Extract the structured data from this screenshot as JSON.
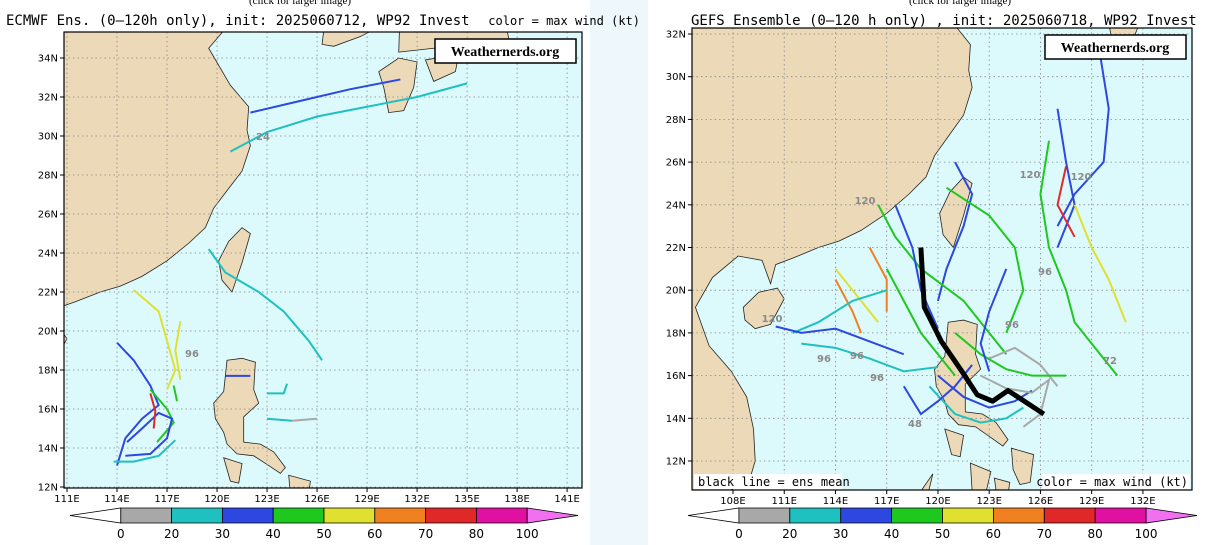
{
  "panels": [
    {
      "caption": "(click for larger image)",
      "title": "ECMWF Ens. (0–120h only), init: 2025060712, WP92 Invest",
      "legend_note": "color = max wind (kt)",
      "watermark": "Weathernerds.org",
      "lat_labels": [
        "12N",
        "14N",
        "16N",
        "18N",
        "20N",
        "22N",
        "24N",
        "26N",
        "28N",
        "30N",
        "32N",
        "34N"
      ],
      "lon_labels": [
        "111E",
        "114E",
        "117E",
        "120E",
        "123E",
        "126E",
        "129E",
        "132E",
        "135E",
        "138E",
        "141E"
      ],
      "colorbar_labels": [
        "0",
        "20",
        "30",
        "40",
        "50",
        "60",
        "70",
        "80",
        "100"
      ],
      "track_labels": [
        "24",
        "96"
      ]
    },
    {
      "caption": "(click for larger image)",
      "title": "GEFS Ensemble (0–120 h only) , init: 2025060718, WP92 Invest",
      "legend_note": "color = max wind (kt)",
      "mean_note": "black line = ens mean",
      "watermark": "Weathernerds.org",
      "lat_labels": [
        "12N",
        "14N",
        "16N",
        "18N",
        "20N",
        "22N",
        "24N",
        "26N",
        "28N",
        "30N",
        "32N"
      ],
      "lon_labels": [
        "108E",
        "111E",
        "114E",
        "117E",
        "120E",
        "123E",
        "126E",
        "129E",
        "132E"
      ],
      "colorbar_labels": [
        "0",
        "20",
        "30",
        "40",
        "50",
        "60",
        "70",
        "80",
        "100"
      ],
      "track_labels": [
        "120",
        "120",
        "96",
        "96",
        "96",
        "48",
        "72",
        "120",
        "120",
        "96",
        "96"
      ]
    }
  ]
}
